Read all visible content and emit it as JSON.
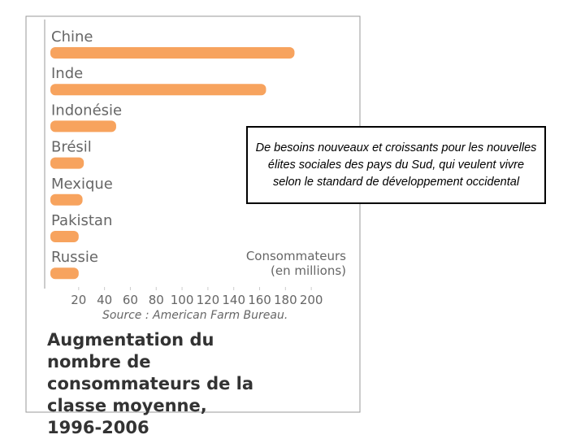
{
  "chart_data": {
    "type": "barh",
    "title": "Augmentation du nombre de consommateurs de la classe moyenne, 1996-2006",
    "x_label": [
      "Consommateurs",
      "(en millions)"
    ],
    "source": "Source : American Farm Bureau.",
    "annotation": "De besoins nouveaux et croissants pour les nouvelles élites sociales des pays du Sud, qui veulent vivre selon le standard de développement occidental",
    "categories": [
      "Chine",
      "Inde",
      "Indonésie",
      "Brésil",
      "Mexique",
      "Pakistan",
      "Russie"
    ],
    "values": [
      187,
      165,
      49,
      24,
      23,
      20,
      20
    ],
    "color": "#f7a35e",
    "xlim": [
      0,
      215
    ],
    "xticks": [
      20,
      40,
      60,
      80,
      100,
      120,
      140,
      160,
      180,
      200
    ]
  }
}
